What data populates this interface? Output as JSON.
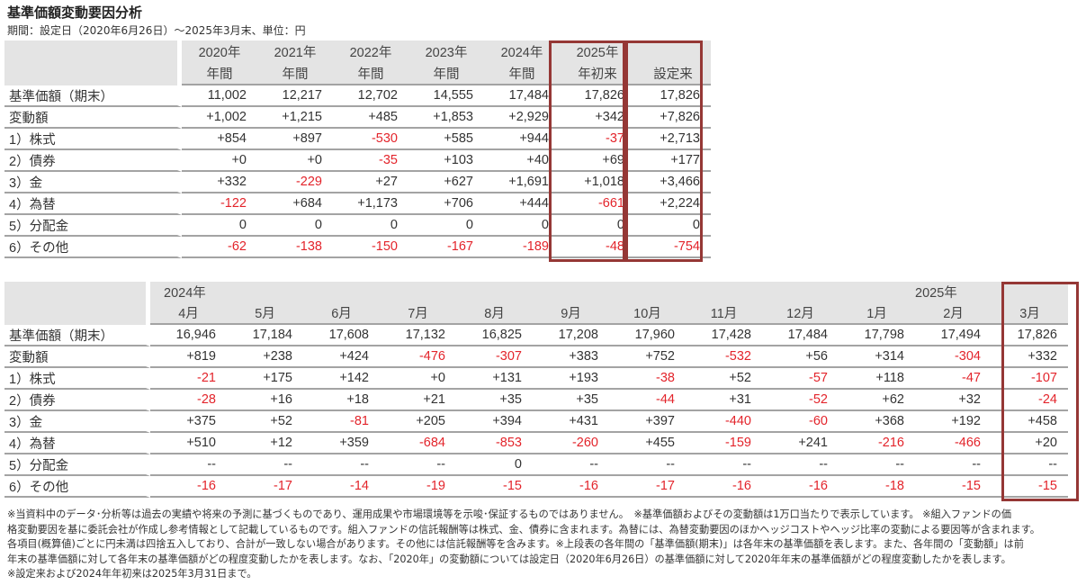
{
  "title": "基準価額変動要因分析",
  "subtitle": "期間：設定日（2020年6月26日）～2025年3月末、単位：円",
  "colors": {
    "negative": "#e3242b",
    "highlight_box": "#953735",
    "header_bg": "#e4e4e4"
  },
  "annual_table": {
    "columns": [
      {
        "line1": "2020年",
        "line2": "年間"
      },
      {
        "line1": "2021年",
        "line2": "年間"
      },
      {
        "line1": "2022年",
        "line2": "年間"
      },
      {
        "line1": "2023年",
        "line2": "年間"
      },
      {
        "line1": "2024年",
        "line2": "年間"
      },
      {
        "line1": "2025年",
        "line2": "年初来"
      },
      {
        "line1": "",
        "line2": "設定来"
      }
    ],
    "rows": [
      {
        "label": "基準価額（期末）",
        "values": [
          "11,002",
          "12,217",
          "12,702",
          "14,555",
          "17,484",
          "17,826",
          "17,826"
        ]
      },
      {
        "label": "変動額",
        "values": [
          "+1,002",
          "+1,215",
          "+485",
          "+1,853",
          "+2,929",
          "+342",
          "+7,826"
        ]
      },
      {
        "label": "1）株式",
        "values": [
          "+854",
          "+897",
          "-530",
          "+585",
          "+944",
          "-37",
          "+2,713"
        ]
      },
      {
        "label": "2）債券",
        "values": [
          "+0",
          "+0",
          "-35",
          "+103",
          "+40",
          "+69",
          "+177"
        ]
      },
      {
        "label": "3）金",
        "values": [
          "+332",
          "-229",
          "+27",
          "+627",
          "+1,691",
          "+1,018",
          "+3,466"
        ]
      },
      {
        "label": "4）為替",
        "values": [
          "-122",
          "+684",
          "+1,173",
          "+706",
          "+444",
          "-661",
          "+2,224"
        ]
      },
      {
        "label": "5）分配金",
        "values": [
          "0",
          "0",
          "0",
          "0",
          "0",
          "0",
          "0"
        ]
      },
      {
        "label": "6）その他",
        "values": [
          "-62",
          "-138",
          "-150",
          "-167",
          "-189",
          "-48",
          "-754"
        ]
      }
    ]
  },
  "monthly_table": {
    "year_labels": {
      "2024": "2024年",
      "2025": "2025年"
    },
    "months": [
      "4月",
      "5月",
      "6月",
      "7月",
      "8月",
      "9月",
      "10月",
      "11月",
      "12月",
      "1月",
      "2月",
      "3月"
    ],
    "rows": [
      {
        "label": "基準価額（期末）",
        "values": [
          "16,946",
          "17,184",
          "17,608",
          "17,132",
          "16,825",
          "17,208",
          "17,960",
          "17,428",
          "17,484",
          "17,798",
          "17,494",
          "17,826"
        ]
      },
      {
        "label": "変動額",
        "values": [
          "+819",
          "+238",
          "+424",
          "-476",
          "-307",
          "+383",
          "+752",
          "-532",
          "+56",
          "+314",
          "-304",
          "+332"
        ]
      },
      {
        "label": "1）株式",
        "values": [
          "-21",
          "+175",
          "+142",
          "+0",
          "+131",
          "+193",
          "-38",
          "+52",
          "-57",
          "+118",
          "-47",
          "-107"
        ]
      },
      {
        "label": "2）債券",
        "values": [
          "-28",
          "+16",
          "+18",
          "+21",
          "+35",
          "+35",
          "-44",
          "+31",
          "-52",
          "+62",
          "+32",
          "-24"
        ]
      },
      {
        "label": "3）金",
        "values": [
          "+375",
          "+52",
          "-81",
          "+205",
          "+394",
          "+431",
          "+397",
          "-440",
          "-60",
          "+368",
          "+192",
          "+458"
        ]
      },
      {
        "label": "4）為替",
        "values": [
          "+510",
          "+12",
          "+359",
          "-684",
          "-853",
          "-260",
          "+455",
          "-159",
          "+241",
          "-216",
          "-466",
          "+20"
        ]
      },
      {
        "label": "5）分配金",
        "values": [
          "--",
          "--",
          "--",
          "--",
          "0",
          "--",
          "--",
          "--",
          "--",
          "--",
          "--",
          "--"
        ]
      },
      {
        "label": "6）その他",
        "values": [
          "-16",
          "-17",
          "-14",
          "-19",
          "-15",
          "-16",
          "-17",
          "-16",
          "-16",
          "-18",
          "-15",
          "-15"
        ]
      }
    ]
  },
  "notes": [
    "※当資料中のデータ･分析等は過去の実績や将来の予測に基づくものであり、運用成果や市場環境等を示唆･保証するものではありません。　※基準価額およびその変動額は1万口当たりで表示しています。 ※組入ファンドの価",
    "格変動要因を基に委託会社が作成し参考情報として記載しているものです。組入ファンドの信託報酬等は株式、金、債券に含まれます。為替には、為替変動要因のほかヘッジコストやヘッジ比率の変動による要因等が含まれます。",
    "各項目(概算値)ごとに円未満は四捨五入しており、合計が一致しない場合があります。その他には信託報酬等を含みます。※上段表の各年間の「基準価額(期末)」は各年末の基準価額を表します。また、各年間の「変動額」は前",
    "年末の基準価額に対して各年末の基準価額がどの程度変動したかを表します。なお、「2020年」の変動額については設定日（2020年6月26日）の基準価額に対して2020年年末の基準価額がどの程度変動したかを表します。",
    "※設定来および2024年年初来は2025年3月31日まで。"
  ]
}
